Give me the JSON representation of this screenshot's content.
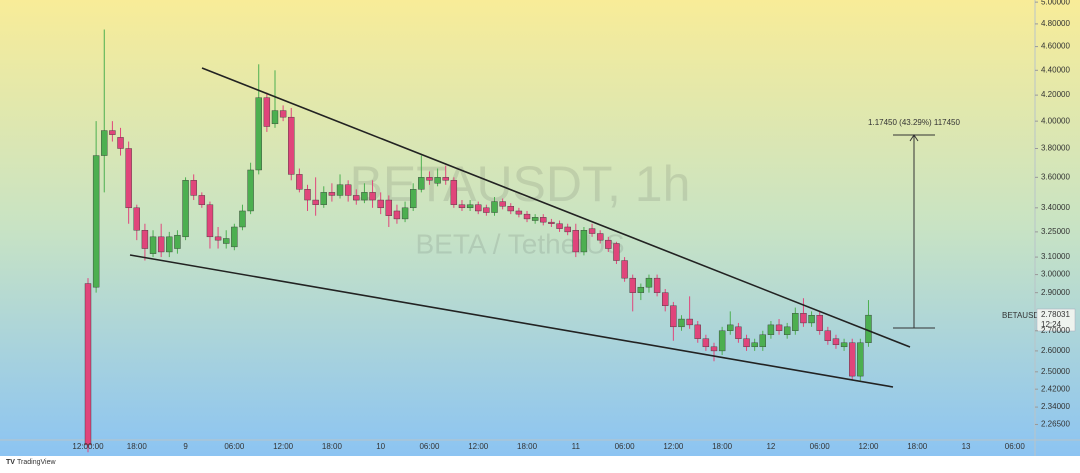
{
  "chart_data": {
    "type": "candlestick",
    "watermark_title": "BETAUSDT, 1h",
    "watermark_subtitle": "BETA / TetherUS",
    "symbol_label": "BETAUSDT",
    "countdown": "12:24",
    "measure_label": "1.17450 (43.29%) 117450",
    "logo": "TradingView",
    "log_scale": true,
    "up_color": "#4caf50",
    "down_color": "#e0457b",
    "ylim": [
      2.2,
      5.02
    ],
    "yticks": [
      {
        "value": 5.0,
        "label": "5.00000"
      },
      {
        "value": 4.8,
        "label": "4.80000"
      },
      {
        "value": 4.6,
        "label": "4.60000"
      },
      {
        "value": 4.4,
        "label": "4.40000"
      },
      {
        "value": 4.2,
        "label": "4.20000"
      },
      {
        "value": 4.0,
        "label": "4.00000"
      },
      {
        "value": 3.8,
        "label": "3.80000"
      },
      {
        "value": 3.6,
        "label": "3.60000"
      },
      {
        "value": 3.4,
        "label": "3.40000"
      },
      {
        "value": 3.25,
        "label": "3.25000"
      },
      {
        "value": 3.1,
        "label": "3.10000"
      },
      {
        "value": 3.0,
        "label": "3.00000"
      },
      {
        "value": 2.9,
        "label": "2.90000"
      },
      {
        "value": 2.7,
        "label": "2.70000"
      },
      {
        "value": 2.6,
        "label": "2.60000"
      },
      {
        "value": 2.5,
        "label": "2.50000"
      },
      {
        "value": 2.42,
        "label": "2.42000"
      },
      {
        "value": 2.34,
        "label": "2.34000"
      },
      {
        "value": 2.265,
        "label": "2.26500"
      }
    ],
    "categories": [
      "12:00:00",
      null,
      null,
      null,
      null,
      null,
      "18:00",
      null,
      null,
      null,
      null,
      null,
      "9",
      null,
      null,
      null,
      null,
      null,
      "06:00",
      null,
      null,
      null,
      null,
      null,
      "12:00",
      null,
      null,
      null,
      null,
      null,
      "18:00",
      null,
      null,
      null,
      null,
      null,
      "10",
      null,
      null,
      null,
      null,
      null,
      "06:00",
      null,
      null,
      null,
      null,
      null,
      "12:00",
      null,
      null,
      null,
      null,
      null,
      "18:00",
      null,
      null,
      null,
      null,
      null,
      "11",
      null,
      null,
      null,
      null,
      null,
      "06:00",
      null,
      null,
      null,
      null,
      null,
      "12:00",
      null,
      null,
      null,
      null,
      null,
      "18:00",
      null,
      null,
      null,
      null,
      null,
      "12",
      null,
      null,
      null,
      null,
      null,
      "06:00",
      null,
      null,
      null,
      null,
      null,
      "12:00",
      null,
      null,
      null,
      null,
      null,
      "18:00",
      null,
      null,
      null,
      null,
      null,
      "13",
      null,
      null,
      null,
      null,
      null,
      "06:00",
      null
    ],
    "open": [
      2.95,
      2.93,
      3.75,
      3.93,
      3.88,
      3.8,
      3.4,
      3.26,
      3.12,
      3.22,
      3.13,
      3.15,
      3.22,
      3.58,
      3.48,
      3.42,
      3.22,
      3.18,
      3.16,
      3.28,
      3.38,
      3.65,
      4.18,
      3.98,
      4.08,
      4.03,
      3.62,
      3.52,
      3.45,
      3.42,
      3.5,
      3.48,
      3.55,
      3.48,
      3.45,
      3.5,
      3.45,
      3.45,
      3.38,
      3.33,
      3.4,
      3.52,
      3.6,
      3.56,
      3.6,
      3.58,
      3.42,
      3.4,
      3.42,
      3.4,
      3.37,
      3.44,
      3.41,
      3.38,
      3.36,
      3.32,
      3.34,
      3.31,
      3.3,
      3.28,
      3.26,
      3.13,
      3.27,
      3.24,
      3.2,
      3.18,
      3.08,
      2.98,
      2.9,
      2.93,
      2.98,
      2.9,
      2.83,
      2.72,
      2.76,
      2.73,
      2.66,
      2.62,
      2.6,
      2.7,
      2.72,
      2.66,
      2.62,
      2.62,
      2.68,
      2.73,
      2.68,
      2.7,
      2.79,
      2.74,
      2.78,
      2.7,
      2.66,
      2.62,
      2.64,
      2.48,
      2.64,
      null,
      null,
      null,
      null,
      null,
      null,
      null,
      null,
      null,
      null,
      null,
      null,
      null,
      null,
      null,
      null,
      null,
      null,
      null
    ],
    "high": [
      2.98,
      4.0,
      4.75,
      4.0,
      3.95,
      3.85,
      3.42,
      3.3,
      3.26,
      3.3,
      3.25,
      3.26,
      3.6,
      3.62,
      3.5,
      3.44,
      3.28,
      3.26,
      3.3,
      3.42,
      3.7,
      4.45,
      4.22,
      4.4,
      4.12,
      4.1,
      3.66,
      3.55,
      3.6,
      3.54,
      3.56,
      3.62,
      3.58,
      3.52,
      3.56,
      3.58,
      3.5,
      3.48,
      3.42,
      3.44,
      3.56,
      3.75,
      3.64,
      3.66,
      3.68,
      3.6,
      3.45,
      3.45,
      3.44,
      3.42,
      3.47,
      3.46,
      3.43,
      3.4,
      3.38,
      3.36,
      3.36,
      3.33,
      3.32,
      3.3,
      3.3,
      3.28,
      3.3,
      3.26,
      3.22,
      3.19,
      3.1,
      3.0,
      2.95,
      3.0,
      3.0,
      2.92,
      2.85,
      2.78,
      2.88,
      2.75,
      2.68,
      2.64,
      2.72,
      2.8,
      2.74,
      2.68,
      2.66,
      2.7,
      2.75,
      2.76,
      2.74,
      2.82,
      2.87,
      2.8,
      2.8,
      2.72,
      2.68,
      2.66,
      2.66,
      2.66,
      2.86,
      null,
      null,
      null,
      null,
      null,
      null,
      null,
      null,
      null,
      null,
      null,
      null,
      null,
      null,
      null,
      null,
      null,
      null,
      null
    ],
    "low": [
      2.15,
      2.9,
      3.5,
      3.85,
      3.75,
      3.3,
      3.2,
      3.08,
      3.1,
      3.1,
      3.1,
      3.12,
      3.2,
      3.45,
      3.4,
      3.15,
      3.15,
      3.15,
      3.14,
      3.26,
      3.36,
      3.62,
      3.92,
      3.95,
      4.0,
      3.58,
      3.5,
      3.38,
      3.35,
      3.4,
      3.44,
      3.46,
      3.44,
      3.42,
      3.43,
      3.4,
      3.36,
      3.28,
      3.3,
      3.31,
      3.38,
      3.5,
      3.55,
      3.54,
      3.55,
      3.4,
      3.38,
      3.38,
      3.36,
      3.35,
      3.35,
      3.39,
      3.36,
      3.34,
      3.31,
      3.3,
      3.29,
      3.28,
      3.25,
      3.23,
      3.1,
      3.11,
      3.22,
      3.18,
      3.13,
      3.06,
      2.96,
      2.8,
      2.86,
      2.9,
      2.88,
      2.8,
      2.65,
      2.7,
      2.71,
      2.64,
      2.6,
      2.55,
      2.58,
      2.68,
      2.64,
      2.6,
      2.6,
      2.6,
      2.66,
      2.68,
      2.66,
      2.68,
      2.72,
      2.72,
      2.68,
      2.63,
      2.61,
      2.6,
      2.46,
      2.46,
      2.62,
      null,
      null,
      null,
      null,
      null,
      null,
      null,
      null,
      null,
      null,
      null,
      null,
      null,
      null,
      null,
      null,
      null,
      null,
      null
    ],
    "close": [
      2.18,
      3.75,
      3.93,
      3.9,
      3.8,
      3.4,
      3.26,
      3.15,
      3.22,
      3.13,
      3.22,
      3.23,
      3.58,
      3.48,
      3.42,
      3.22,
      3.2,
      3.21,
      3.28,
      3.38,
      3.65,
      4.18,
      3.96,
      4.08,
      4.03,
      3.62,
      3.52,
      3.45,
      3.42,
      3.5,
      3.48,
      3.55,
      3.48,
      3.45,
      3.5,
      3.45,
      3.4,
      3.35,
      3.33,
      3.4,
      3.52,
      3.6,
      3.58,
      3.6,
      3.58,
      3.42,
      3.4,
      3.42,
      3.38,
      3.37,
      3.44,
      3.41,
      3.38,
      3.36,
      3.33,
      3.34,
      3.31,
      3.3,
      3.27,
      3.25,
      3.13,
      3.26,
      3.24,
      3.2,
      3.15,
      3.08,
      2.98,
      2.9,
      2.93,
      2.98,
      2.9,
      2.83,
      2.72,
      2.76,
      2.73,
      2.66,
      2.62,
      2.6,
      2.7,
      2.73,
      2.66,
      2.62,
      2.64,
      2.68,
      2.73,
      2.7,
      2.72,
      2.79,
      2.74,
      2.78,
      2.7,
      2.65,
      2.63,
      2.64,
      2.48,
      2.64,
      2.78031,
      null,
      null,
      null,
      null,
      null,
      null,
      null,
      null,
      null,
      null,
      null,
      null,
      null,
      null,
      null,
      null,
      null,
      null,
      null
    ]
  }
}
